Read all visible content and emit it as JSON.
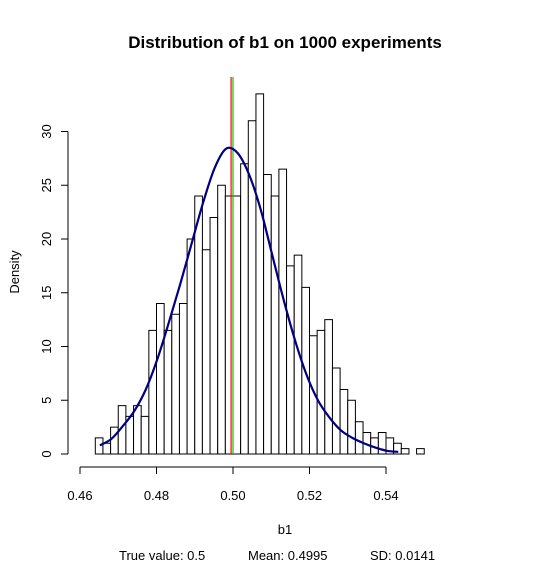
{
  "chart_data": {
    "type": "bar",
    "title": "Distribution of b1 on 1000 experiments",
    "xlabel": "b1",
    "ylabel": "Density",
    "xlim": [
      0.46,
      0.545
    ],
    "ylim": [
      0,
      34
    ],
    "x_ticks": [
      0.46,
      0.48,
      0.5,
      0.52,
      0.54
    ],
    "x_tick_labels": [
      "0.46",
      "0.48",
      "0.50",
      "0.52",
      "0.54"
    ],
    "y_ticks": [
      0,
      5,
      10,
      15,
      20,
      25,
      30
    ],
    "y_tick_labels": [
      "0",
      "5",
      "10",
      "15",
      "20",
      "25",
      "30"
    ],
    "bin_width": 0.002,
    "bins_start": 0.464,
    "values": [
      1.5,
      1.0,
      2.5,
      4.5,
      3.5,
      4.5,
      3.5,
      11.5,
      14.0,
      11.5,
      13.0,
      14.0,
      20.0,
      24.0,
      19.0,
      22.0,
      25.0,
      24.0,
      24.0,
      27.0,
      31.0,
      33.5,
      26.0,
      24.0,
      26.5,
      17.5,
      18.5,
      15.5,
      11.0,
      11.5,
      12.5,
      8.0,
      6.0,
      5.0,
      3.0,
      2.0,
      1.5,
      2.0,
      1.5,
      1.0,
      0.5,
      0.0,
      0.5
    ],
    "density_curve": {
      "color": "#000080",
      "mean": 0.4995,
      "sd": 0.0141,
      "x": [
        0.4652,
        0.4682,
        0.4712,
        0.4742,
        0.4772,
        0.4802,
        0.4832,
        0.4862,
        0.4892,
        0.4922,
        0.4952,
        0.4982,
        0.5012,
        0.5042,
        0.5072,
        0.5102,
        0.5132,
        0.5162,
        0.5192,
        0.5222,
        0.5252,
        0.5282,
        0.5312,
        0.5342,
        0.5372,
        0.5402,
        0.5432
      ],
      "y": [
        0.8,
        1.4,
        2.6,
        4.0,
        6.0,
        8.8,
        12.2,
        15.8,
        19.6,
        23.4,
        26.6,
        28.4,
        28.0,
        26.0,
        22.8,
        18.6,
        14.4,
        10.6,
        7.4,
        5.0,
        3.4,
        2.2,
        1.5,
        1.0,
        0.6,
        0.3,
        0.2
      ]
    },
    "vlines": [
      {
        "x": 0.4995,
        "color": "#ff0000"
      },
      {
        "x": 0.5,
        "color": "#00cc00"
      }
    ],
    "grid": false,
    "bar_fill": "#ffffff",
    "bar_stroke": "#000000"
  },
  "stats": {
    "true_value": "True value: 0.5",
    "mean": "Mean:  0.4995",
    "sd": "SD:  0.0141"
  }
}
